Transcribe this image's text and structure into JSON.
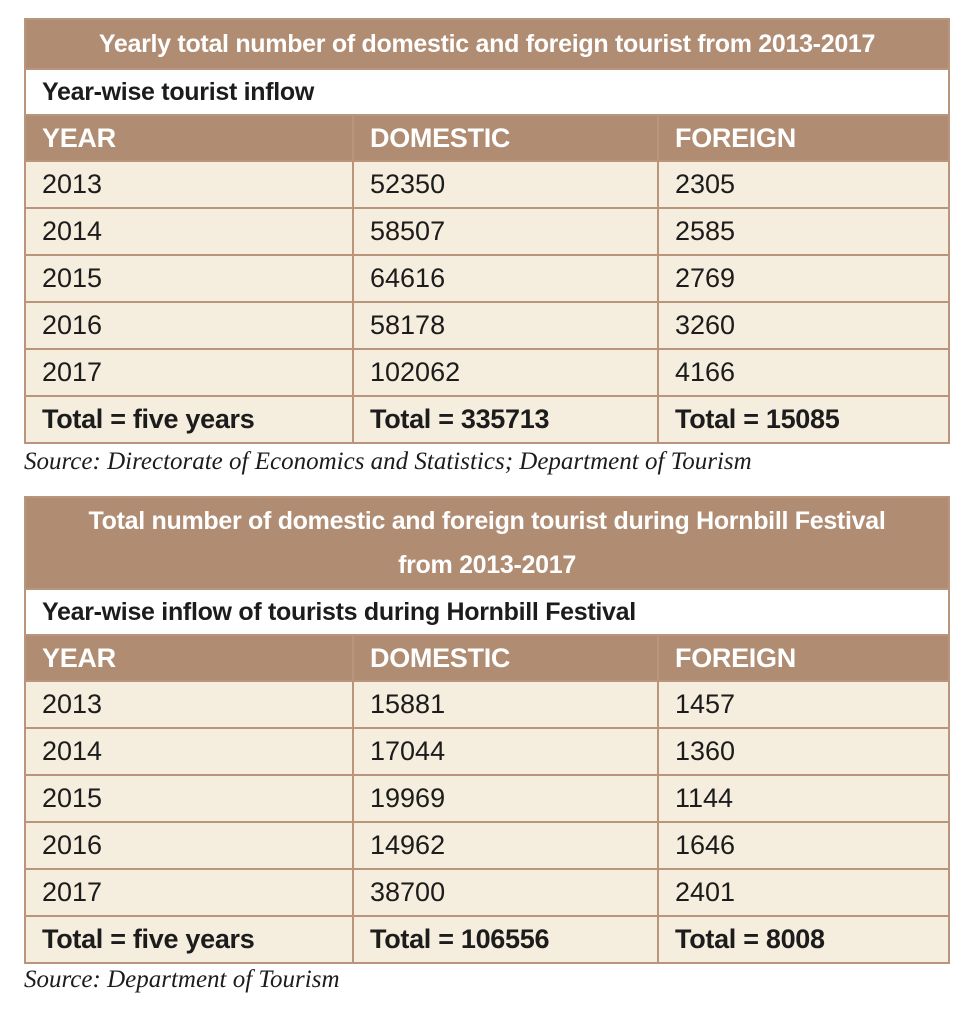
{
  "table1": {
    "title": "Yearly total number of domestic and foreign tourist from 2013-2017",
    "subtitle": "Year-wise tourist inflow",
    "headers": [
      "YEAR",
      "DOMESTIC",
      "FOREIGN"
    ],
    "rows": [
      [
        "2013",
        "52350",
        "2305"
      ],
      [
        "2014",
        "58507",
        "2585"
      ],
      [
        "2015",
        "64616",
        "2769"
      ],
      [
        "2016",
        "58178",
        "3260"
      ],
      [
        "2017",
        "102062",
        "4166"
      ]
    ],
    "totals": [
      "Total = five years",
      "Total = 335713",
      "Total = 15085"
    ],
    "source": "Source: Directorate of Economics and Statistics; Department of Tourism"
  },
  "table2": {
    "title_line1": "Total number of domestic and foreign tourist during Hornbill Festival",
    "title_line2": "from 2013-2017",
    "subtitle": "Year-wise inflow of tourists during Hornbill Festival",
    "headers": [
      "YEAR",
      "DOMESTIC",
      "FOREIGN"
    ],
    "rows": [
      [
        "2013",
        "15881",
        "1457"
      ],
      [
        "2014",
        "17044",
        "1360"
      ],
      [
        "2015",
        "19969",
        "1144"
      ],
      [
        "2016",
        "14962",
        "1646"
      ],
      [
        "2017",
        "38700",
        "2401"
      ]
    ],
    "totals": [
      "Total = five years",
      "Total = 106556",
      "Total = 8008"
    ],
    "source": "Source: Department of Tourism"
  },
  "colors": {
    "header_brown": "#b08c72",
    "row_cream": "#f5eddd",
    "border": "#b8957b"
  }
}
